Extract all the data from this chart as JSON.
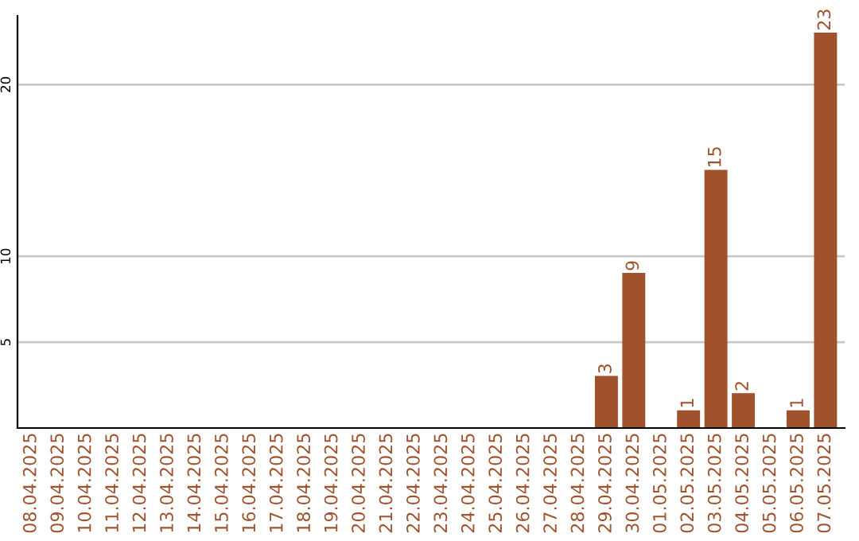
{
  "chart_data": {
    "type": "bar",
    "categories": [
      "08.04.2025",
      "09.04.2025",
      "10.04.2025",
      "11.04.2025",
      "12.04.2025",
      "13.04.2025",
      "14.04.2025",
      "15.04.2025",
      "16.04.2025",
      "17.04.2025",
      "18.04.2025",
      "19.04.2025",
      "20.04.2025",
      "21.04.2025",
      "22.04.2025",
      "23.04.2025",
      "24.04.2025",
      "25.04.2025",
      "26.04.2025",
      "27.04.2025",
      "28.04.2025",
      "29.04.2025",
      "30.04.2025",
      "01.05.2025",
      "02.05.2025",
      "03.05.2025",
      "04.05.2025",
      "05.05.2025",
      "06.05.2025",
      "07.05.2025"
    ],
    "values": [
      0,
      0,
      0,
      0,
      0,
      0,
      0,
      0,
      0,
      0,
      0,
      0,
      0,
      0,
      0,
      0,
      0,
      0,
      0,
      0,
      0,
      3,
      9,
      0,
      1,
      15,
      2,
      0,
      1,
      23
    ],
    "value_labels": [
      null,
      null,
      null,
      null,
      null,
      null,
      null,
      null,
      null,
      null,
      null,
      null,
      null,
      null,
      null,
      null,
      null,
      null,
      null,
      null,
      null,
      "3",
      "9",
      null,
      "1",
      "15",
      "2",
      null,
      "1",
      "23"
    ],
    "color": "#a0522d",
    "ylim": [
      0,
      24
    ],
    "yticks": [
      5,
      10,
      20
    ],
    "grid": "y"
  }
}
